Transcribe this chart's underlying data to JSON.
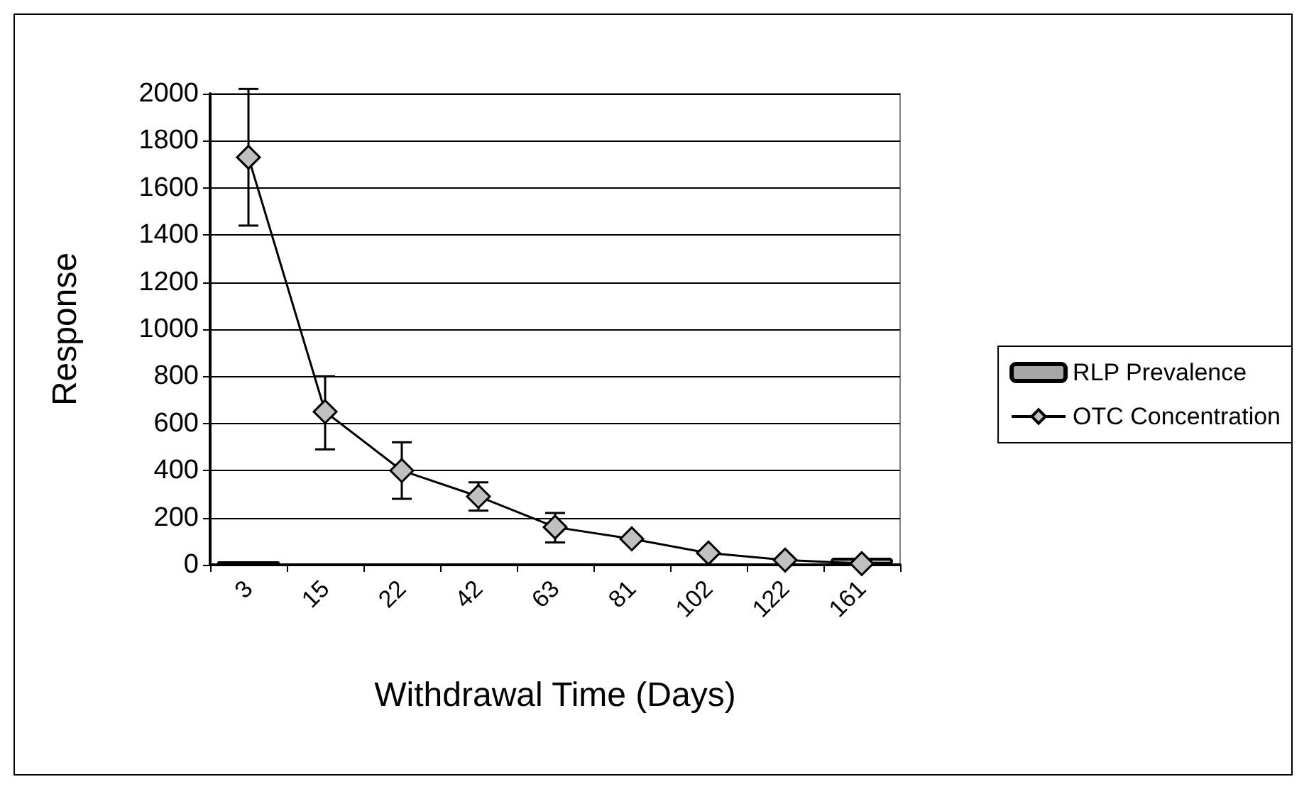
{
  "chart_data": {
    "type": "bar",
    "xlabel": "Withdrawal Time (Days)",
    "ylabel": "Response",
    "categories": [
      "3",
      "15",
      "22",
      "42",
      "63",
      "81",
      "102",
      "122",
      "161"
    ],
    "series": [
      {
        "name": "RLP Prevalence",
        "color": "#a6a6a6",
        "values": [
          15,
          null,
          null,
          null,
          null,
          null,
          null,
          null,
          30
        ]
      },
      {
        "name": "OTC Concentration",
        "type": "line",
        "color": "#c0c0c0",
        "marker": "diamond",
        "values": [
          1730,
          650,
          400,
          290,
          160,
          110,
          50,
          20,
          5
        ],
        "errors": [
          [
            1440,
            2020
          ],
          [
            490,
            800
          ],
          [
            280,
            520
          ],
          [
            230,
            350
          ],
          [
            95,
            220
          ],
          null,
          null,
          null,
          null
        ]
      }
    ],
    "ylim": [
      0,
      2000
    ],
    "yticks": [
      0,
      200,
      400,
      600,
      800,
      1000,
      1200,
      1400,
      1600,
      1800,
      2000
    ],
    "grid": "y",
    "legend": "right"
  }
}
